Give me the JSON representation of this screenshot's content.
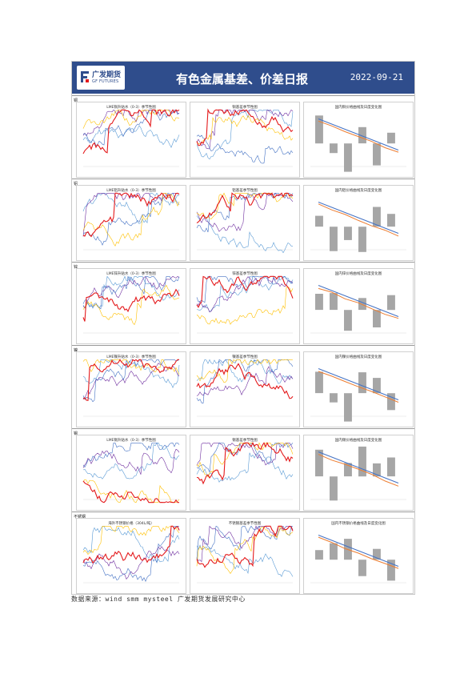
{
  "header": {
    "logo_cn": "广发期货",
    "logo_en": "GF FUTURES",
    "title": "有色金属基差、价差日报",
    "date": "2022-09-21",
    "bg_color": "#2f4d8c"
  },
  "sections": [
    {
      "label": "铜",
      "titles": [
        "LME铜升贴水（0-3）季节性图",
        "铜基差季节性图",
        "国内铜价格曲线及日度变化图"
      ]
    },
    {
      "label": "铝",
      "titles": [
        "LME铝升贴水（0-3）季节性图",
        "铝基差季节性图",
        "国内铝价格曲线及日度变化图"
      ]
    },
    {
      "label": "锌",
      "titles": [
        "LME锌升贴水（0-3）季节性图",
        "锌基差季节性图",
        "国内锌价格曲线及日度变化图"
      ]
    },
    {
      "label": "镍",
      "titles": [
        "LME镍升贴水（0-3）季节性图",
        "镍基差季节性图",
        "国内镍价格曲线及日度变化图"
      ]
    },
    {
      "label": "锡",
      "titles": [
        "LME锡升贴水（0-3）季节性图",
        "锡基差季节性图",
        "国内锡价格曲线及日度变化图"
      ]
    },
    {
      "label": "不锈钢",
      "titles": [
        "海外不锈钢价格（304L/吨）",
        "不锈钢基差季节性图",
        "国内不锈钢价格曲线及日度变化图"
      ]
    }
  ],
  "series_colors": {
    "y2018": "#5b9bd5",
    "y2019": "#7030a0",
    "y2020": "#4472c4",
    "y2021": "#ffc000",
    "y2022": "#e41a1c",
    "gray": "#a6a6a6",
    "orange": "#ed7d31"
  },
  "source": "数据来源：wind  smm  mysteel  广发期货发展研究中心"
}
